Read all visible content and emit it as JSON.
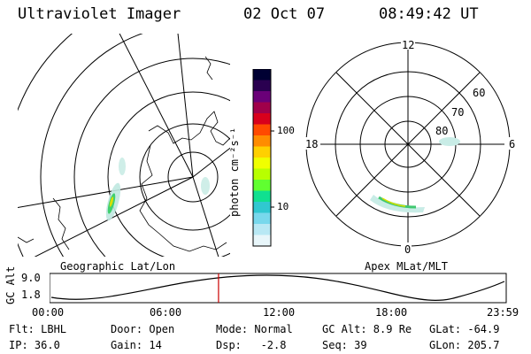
{
  "header": {
    "instrument": "Ultraviolet Imager",
    "date": "02 Oct 07",
    "time": "08:49:42 UT"
  },
  "left_map": {
    "caption": "Geographic Lat/Lon"
  },
  "right_map": {
    "caption": "Apex MLat/MLT",
    "mlt_labels": {
      "top": "12",
      "bottom": "0",
      "left": "18",
      "right": "6"
    },
    "lat_labels": [
      "60",
      "70",
      "80"
    ]
  },
  "colorbar": {
    "unit_label": "photon cm⁻²s⁻¹",
    "ticks": [
      "100",
      "10"
    ],
    "colors": [
      "#000033",
      "#2a0050",
      "#6a0078",
      "#a0004a",
      "#d8001c",
      "#ff4a00",
      "#ff8c00",
      "#ffd000",
      "#f0ff00",
      "#b8ff00",
      "#60ff30",
      "#10e090",
      "#30c8d0",
      "#78d8ec",
      "#b8e8f4",
      "#e8f6fa"
    ]
  },
  "altitude_plot": {
    "ylabel": "GC Alt",
    "yticks": [
      "9.0",
      "1.8"
    ],
    "xticks": [
      "00:00",
      "06:00",
      "12:00",
      "18:00",
      "23:59"
    ],
    "current_time_fraction": 0.37,
    "marker_color": "#cc0000"
  },
  "info": {
    "row1": {
      "flt": "Flt: LBHL",
      "door": "Door: Open",
      "mode": "Mode: Normal",
      "gcalt": "GC Alt: 8.9 Re",
      "glat": "GLat: -64.9"
    },
    "row2": {
      "ip": "IP: 36.0",
      "gain": "Gain: 14",
      "dsp": "Dsp:   -2.8",
      "seq": "Seq: 39",
      "glon": "GLon: 205.7"
    }
  }
}
